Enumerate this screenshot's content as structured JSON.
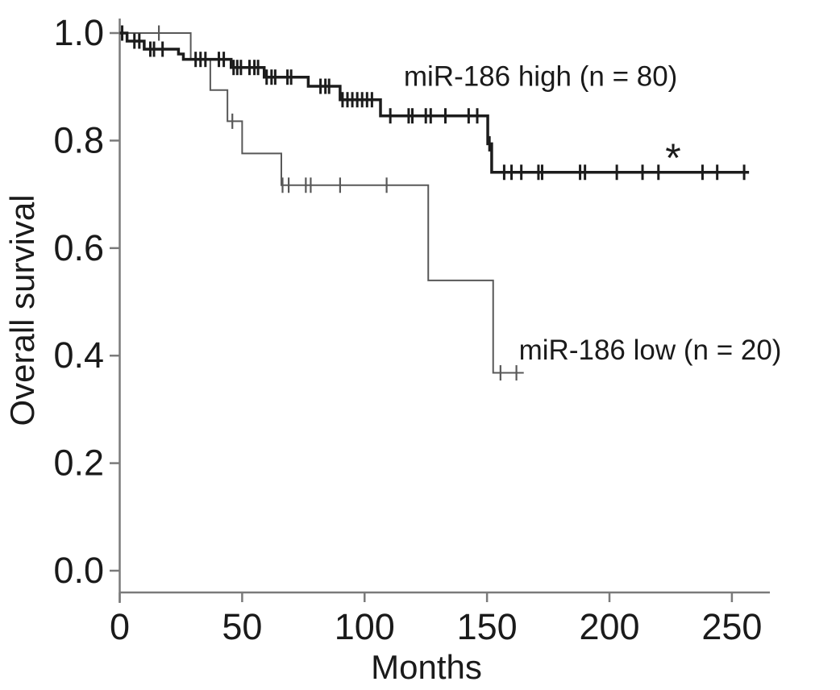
{
  "figure": {
    "background_color": "#ffffff",
    "text_color": "#1a1a1a",
    "axis_color": "#7a7a7a"
  },
  "chart_data": {
    "type": "line",
    "subtype": "kaplan_meier_step",
    "title": "",
    "xlabel": "Months",
    "ylabel": "Overall survival",
    "xlim": [
      0,
      265
    ],
    "ylim": [
      0.0,
      1.0
    ],
    "grid": false,
    "xticks": [
      0,
      50,
      100,
      150,
      200,
      250
    ],
    "xtick_labels": [
      "0",
      "50",
      "100",
      "150",
      "200",
      "250"
    ],
    "yticks": [
      0.0,
      0.2,
      0.4,
      0.6,
      0.8,
      1.0
    ],
    "ytick_labels": [
      "0.0",
      "0.2",
      "0.4",
      "0.6",
      "0.8",
      "1.0"
    ],
    "legend_position": "inline-labels",
    "annotations": [
      {
        "id": "significance-asterisk",
        "text": "*",
        "x": 226,
        "y": 0.784,
        "font_size": 50
      }
    ],
    "series": [
      {
        "id": "low",
        "name": "miR-186 low (n = 20)",
        "label_pos": {
          "x": 163,
          "y": 0.411
        },
        "color": "#585858",
        "line_width": 2,
        "censor_width": 2.2,
        "steps": [
          [
            0,
            1.0
          ],
          [
            29,
            0.951
          ],
          [
            37,
            0.894
          ],
          [
            44,
            0.836
          ],
          [
            50,
            0.776
          ],
          [
            66,
            0.717
          ],
          [
            126,
            0.54
          ],
          [
            152.5,
            0.368
          ]
        ],
        "end_x": 165,
        "censors": [
          [
            16,
            1.0
          ],
          [
            46,
            0.836
          ],
          [
            66.5,
            0.717
          ],
          [
            69,
            0.717
          ],
          [
            76,
            0.717
          ],
          [
            78,
            0.717
          ],
          [
            90,
            0.717
          ],
          [
            109,
            0.717
          ],
          [
            155.5,
            0.368
          ],
          [
            162,
            0.368
          ]
        ]
      },
      {
        "id": "high",
        "name": "miR-186 high (n = 80)",
        "label_pos": {
          "x": 116,
          "y": 0.92
        },
        "color": "#1c1c1c",
        "line_width": 3.5,
        "censor_width": 3,
        "steps": [
          [
            0,
            1.0
          ],
          [
            3,
            0.985
          ],
          [
            10,
            0.97
          ],
          [
            24,
            0.961
          ],
          [
            26,
            0.951
          ],
          [
            45.5,
            0.936
          ],
          [
            59,
            0.918
          ],
          [
            77,
            0.901
          ],
          [
            90,
            0.876
          ],
          [
            106.5,
            0.846
          ],
          [
            150.3,
            0.794
          ],
          [
            151.9,
            0.741
          ]
        ],
        "end_x": 257,
        "censors": [
          [
            1,
            1.0
          ],
          [
            6,
            0.985
          ],
          [
            8,
            0.985
          ],
          [
            12.5,
            0.97
          ],
          [
            14,
            0.97
          ],
          [
            17.5,
            0.97
          ],
          [
            31,
            0.951
          ],
          [
            33,
            0.951
          ],
          [
            35,
            0.951
          ],
          [
            40.5,
            0.951
          ],
          [
            42.5,
            0.951
          ],
          [
            46.5,
            0.936
          ],
          [
            48,
            0.936
          ],
          [
            49.5,
            0.936
          ],
          [
            53,
            0.936
          ],
          [
            55,
            0.936
          ],
          [
            56.5,
            0.936
          ],
          [
            60,
            0.918
          ],
          [
            62,
            0.918
          ],
          [
            63.5,
            0.918
          ],
          [
            68.5,
            0.918
          ],
          [
            70,
            0.918
          ],
          [
            82,
            0.901
          ],
          [
            84,
            0.901
          ],
          [
            85.5,
            0.901
          ],
          [
            91,
            0.876
          ],
          [
            93,
            0.876
          ],
          [
            95,
            0.876
          ],
          [
            97,
            0.876
          ],
          [
            99,
            0.876
          ],
          [
            101,
            0.876
          ],
          [
            103,
            0.876
          ],
          [
            110.5,
            0.846
          ],
          [
            118,
            0.846
          ],
          [
            119.5,
            0.846
          ],
          [
            125,
            0.846
          ],
          [
            127,
            0.846
          ],
          [
            133,
            0.846
          ],
          [
            142.5,
            0.846
          ],
          [
            146,
            0.846
          ],
          [
            151,
            0.794
          ],
          [
            157,
            0.741
          ],
          [
            160,
            0.741
          ],
          [
            164,
            0.741
          ],
          [
            171,
            0.741
          ],
          [
            172.5,
            0.741
          ],
          [
            188,
            0.741
          ],
          [
            190,
            0.741
          ],
          [
            203,
            0.741
          ],
          [
            213.5,
            0.741
          ],
          [
            220,
            0.741
          ],
          [
            238,
            0.741
          ],
          [
            244,
            0.741
          ],
          [
            255,
            0.741
          ]
        ]
      }
    ],
    "fonts": {
      "tick_label_size": 45,
      "axis_title_size": 42,
      "series_label_size": 35
    }
  }
}
